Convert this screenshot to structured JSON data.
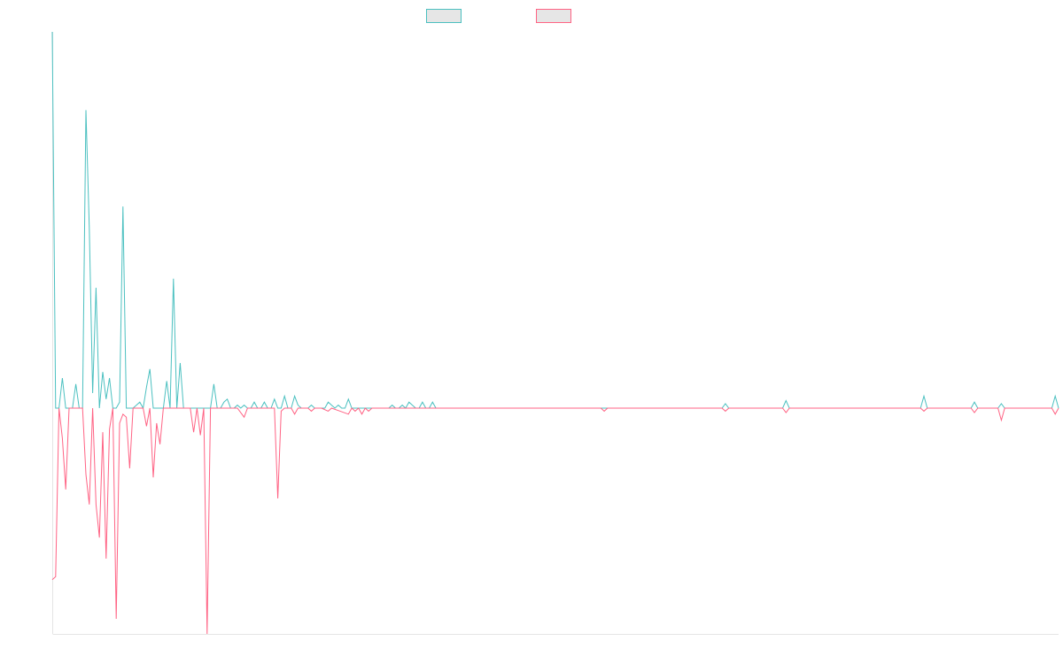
{
  "chart_data": {
    "type": "line",
    "title": "",
    "xlabel": "",
    "ylabel": "",
    "legend": {
      "placement": "top-center"
    },
    "grid": false,
    "ylim": [
      -0.75,
      1.25
    ],
    "x_count": 300,
    "series": [
      {
        "name": "",
        "color": "#4bc0c0",
        "fill": "#e6e6e6",
        "points": [
          [
            0,
            1.25
          ],
          [
            1,
            0.0
          ],
          [
            2,
            0.0
          ],
          [
            3,
            0.1
          ],
          [
            4,
            0.0
          ],
          [
            5,
            0.0
          ],
          [
            6,
            0.0
          ],
          [
            7,
            0.08
          ],
          [
            8,
            0.0
          ],
          [
            9,
            0.0
          ],
          [
            10,
            0.99
          ],
          [
            11,
            0.6
          ],
          [
            12,
            0.05
          ],
          [
            13,
            0.4
          ],
          [
            14,
            0.0
          ],
          [
            15,
            0.12
          ],
          [
            16,
            0.03
          ],
          [
            17,
            0.1
          ],
          [
            18,
            0.0
          ],
          [
            19,
            0.0
          ],
          [
            20,
            0.02
          ],
          [
            21,
            0.67
          ],
          [
            22,
            0.0
          ],
          [
            23,
            0.0
          ],
          [
            24,
            0.0
          ],
          [
            25,
            0.01
          ],
          [
            26,
            0.02
          ],
          [
            27,
            0.0
          ],
          [
            28,
            0.07
          ],
          [
            29,
            0.13
          ],
          [
            30,
            0.0
          ],
          [
            31,
            0.0
          ],
          [
            32,
            0.0
          ],
          [
            33,
            0.0
          ],
          [
            34,
            0.09
          ],
          [
            35,
            0.0
          ],
          [
            36,
            0.43
          ],
          [
            37,
            0.0
          ],
          [
            38,
            0.15
          ],
          [
            39,
            0.0
          ],
          [
            40,
            0.0
          ],
          [
            41,
            0.0
          ],
          [
            42,
            0.0
          ],
          [
            43,
            0.0
          ],
          [
            44,
            0.0
          ],
          [
            45,
            0.0
          ],
          [
            46,
            0.0
          ],
          [
            47,
            0.0
          ],
          [
            48,
            0.08
          ],
          [
            49,
            0.0
          ],
          [
            50,
            0.0
          ],
          [
            51,
            0.02
          ],
          [
            52,
            0.03
          ],
          [
            53,
            0.0
          ],
          [
            54,
            0.0
          ],
          [
            55,
            0.01
          ],
          [
            56,
            0.0
          ],
          [
            57,
            0.01
          ],
          [
            58,
            0.0
          ],
          [
            59,
            0.0
          ],
          [
            60,
            0.02
          ],
          [
            61,
            0.0
          ],
          [
            62,
            0.0
          ],
          [
            63,
            0.02
          ],
          [
            64,
            0.0
          ],
          [
            65,
            0.0
          ],
          [
            66,
            0.03
          ],
          [
            67,
            0.0
          ],
          [
            68,
            0.0
          ],
          [
            69,
            0.04
          ],
          [
            70,
            0.0
          ],
          [
            71,
            0.0
          ],
          [
            72,
            0.04
          ],
          [
            73,
            0.01
          ],
          [
            74,
            0.0
          ],
          [
            75,
            0.0
          ],
          [
            76,
            0.0
          ],
          [
            77,
            0.01
          ],
          [
            78,
            0.0
          ],
          [
            79,
            0.0
          ],
          [
            80,
            0.0
          ],
          [
            81,
            0.0
          ],
          [
            82,
            0.02
          ],
          [
            83,
            0.01
          ],
          [
            84,
            0.0
          ],
          [
            85,
            0.01
          ],
          [
            86,
            0.0
          ],
          [
            87,
            0.0
          ],
          [
            88,
            0.03
          ],
          [
            89,
            0.0
          ],
          [
            90,
            0.0
          ],
          [
            91,
            0.0
          ],
          [
            92,
            0.0
          ],
          [
            93,
            0.0
          ],
          [
            94,
            0.0
          ],
          [
            95,
            0.0
          ],
          [
            96,
            0.0
          ],
          [
            97,
            0.0
          ],
          [
            98,
            0.0
          ],
          [
            99,
            0.0
          ],
          [
            100,
            0.0
          ],
          [
            101,
            0.01
          ],
          [
            102,
            0.0
          ],
          [
            103,
            0.0
          ],
          [
            104,
            0.01
          ],
          [
            105,
            0.0
          ],
          [
            106,
            0.02
          ],
          [
            107,
            0.01
          ],
          [
            108,
            0.0
          ],
          [
            109,
            0.0
          ],
          [
            110,
            0.02
          ],
          [
            111,
            0.0
          ],
          [
            112,
            0.0
          ],
          [
            113,
            0.02
          ],
          [
            114,
            0.0
          ],
          [
            115,
            0.0
          ],
          [
            120,
            0.0
          ],
          [
            125,
            0.0
          ],
          [
            130,
            0.0
          ],
          [
            135,
            0.0
          ],
          [
            140,
            0.0
          ],
          [
            145,
            0.0
          ],
          [
            150,
            0.0
          ],
          [
            155,
            0.0
          ],
          [
            160,
            0.0
          ],
          [
            165,
            0.0
          ],
          [
            170,
            0.0
          ],
          [
            175,
            0.0
          ],
          [
            180,
            0.0
          ],
          [
            185,
            0.0
          ],
          [
            190,
            0.0
          ],
          [
            199,
            0.0
          ],
          [
            200,
            0.015
          ],
          [
            201,
            0.0
          ],
          [
            210,
            0.0
          ],
          [
            217,
            0.0
          ],
          [
            218,
            0.025
          ],
          [
            219,
            0.0
          ],
          [
            240,
            0.0
          ],
          [
            258,
            0.0
          ],
          [
            259,
            0.04
          ],
          [
            260,
            0.0
          ],
          [
            273,
            0.0
          ],
          [
            274,
            0.02
          ],
          [
            275,
            0.0
          ],
          [
            281,
            0.0
          ],
          [
            282,
            0.015
          ],
          [
            283,
            0.0
          ],
          [
            297,
            0.0
          ],
          [
            298,
            0.04
          ],
          [
            299,
            0.0
          ]
        ]
      },
      {
        "name": "",
        "color": "#ff6384",
        "fill": "#e6e6e6",
        "points": [
          [
            0,
            -0.57
          ],
          [
            1,
            -0.56
          ],
          [
            2,
            -0.0
          ],
          [
            3,
            -0.1
          ],
          [
            4,
            -0.27
          ],
          [
            5,
            -0.0
          ],
          [
            6,
            -0.0
          ],
          [
            7,
            -0.0
          ],
          [
            8,
            -0.0
          ],
          [
            9,
            -0.0
          ],
          [
            10,
            -0.22
          ],
          [
            11,
            -0.32
          ],
          [
            12,
            -0.0
          ],
          [
            13,
            -0.32
          ],
          [
            14,
            -0.43
          ],
          [
            15,
            -0.08
          ],
          [
            16,
            -0.5
          ],
          [
            17,
            -0.07
          ],
          [
            18,
            -0.0
          ],
          [
            19,
            -0.7
          ],
          [
            20,
            -0.05
          ],
          [
            21,
            -0.02
          ],
          [
            22,
            -0.03
          ],
          [
            23,
            -0.2
          ],
          [
            24,
            -0.0
          ],
          [
            25,
            -0.0
          ],
          [
            26,
            -0.0
          ],
          [
            27,
            -0.0
          ],
          [
            28,
            -0.06
          ],
          [
            29,
            -0.0
          ],
          [
            30,
            -0.23
          ],
          [
            31,
            -0.05
          ],
          [
            32,
            -0.12
          ],
          [
            33,
            -0.0
          ],
          [
            34,
            -0.0
          ],
          [
            35,
            -0.0
          ],
          [
            36,
            -0.0
          ],
          [
            37,
            -0.0
          ],
          [
            38,
            -0.0
          ],
          [
            39,
            -0.0
          ],
          [
            40,
            -0.0
          ],
          [
            41,
            -0.0
          ],
          [
            42,
            -0.08
          ],
          [
            43,
            -0.0
          ],
          [
            44,
            -0.09
          ],
          [
            45,
            -0.0
          ],
          [
            46,
            -0.75
          ],
          [
            47,
            -0.0
          ],
          [
            48,
            -0.0
          ],
          [
            49,
            -0.0
          ],
          [
            55,
            -0.0
          ],
          [
            57,
            -0.03
          ],
          [
            58,
            -0.0
          ],
          [
            60,
            -0.0
          ],
          [
            61,
            -0.0
          ],
          [
            62,
            -0.0
          ],
          [
            66,
            -0.0
          ],
          [
            67,
            -0.3
          ],
          [
            68,
            -0.01
          ],
          [
            69,
            -0.0
          ],
          [
            71,
            -0.0
          ],
          [
            72,
            -0.02
          ],
          [
            73,
            -0.0
          ],
          [
            75,
            -0.0
          ],
          [
            76,
            -0.0
          ],
          [
            77,
            -0.01
          ],
          [
            78,
            -0.0
          ],
          [
            80,
            -0.0
          ],
          [
            82,
            -0.01
          ],
          [
            83,
            -0.0
          ],
          [
            88,
            -0.02
          ],
          [
            89,
            -0.0
          ],
          [
            90,
            -0.01
          ],
          [
            91,
            -0.0
          ],
          [
            92,
            -0.02
          ],
          [
            93,
            -0.0
          ],
          [
            94,
            -0.01
          ],
          [
            95,
            -0.0
          ],
          [
            110,
            -0.0
          ],
          [
            120,
            -0.0
          ],
          [
            130,
            -0.0
          ],
          [
            140,
            -0.0
          ],
          [
            150,
            -0.0
          ],
          [
            160,
            -0.0
          ],
          [
            163,
            -0.0
          ],
          [
            164,
            -0.01
          ],
          [
            165,
            -0.0
          ],
          [
            170,
            -0.0
          ],
          [
            175,
            -0.0
          ],
          [
            185,
            -0.0
          ],
          [
            195,
            -0.0
          ],
          [
            199,
            -0.0
          ],
          [
            200,
            -0.01
          ],
          [
            201,
            -0.0
          ],
          [
            210,
            -0.0
          ],
          [
            217,
            -0.0
          ],
          [
            218,
            -0.015
          ],
          [
            219,
            -0.0
          ],
          [
            240,
            -0.0
          ],
          [
            258,
            -0.0
          ],
          [
            259,
            -0.01
          ],
          [
            260,
            -0.0
          ],
          [
            273,
            -0.0
          ],
          [
            274,
            -0.015
          ],
          [
            275,
            -0.0
          ],
          [
            281,
            -0.0
          ],
          [
            282,
            -0.04
          ],
          [
            283,
            -0.0
          ],
          [
            297,
            -0.0
          ],
          [
            298,
            -0.02
          ],
          [
            299,
            -0.0
          ]
        ]
      }
    ]
  }
}
